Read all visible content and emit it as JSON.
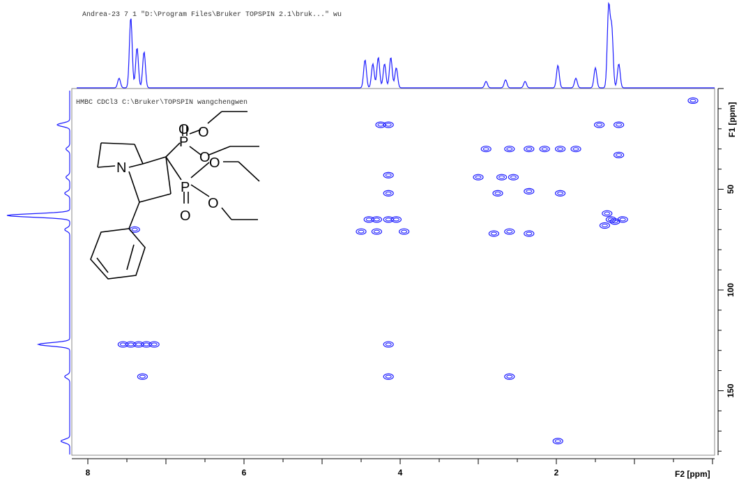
{
  "header_line": "Andrea-23  7  1  \"D:\\Program Files\\Bruker TOPSPIN 2.1\\bruk...\"  wu",
  "plot_title": "HMBC CDCl3 C:\\Bruker\\TOPSPIN wangchengwen",
  "colors": {
    "contour": "#1a1aff",
    "axis": "#000000",
    "frame": "#888888"
  },
  "chart_data": {
    "type": "heatmap",
    "title": "HMBC CDCl3 C:\\Bruker\\TOPSPIN wangchengwen",
    "xlabel": "F2 [ppm]",
    "ylabel": "F1 [ppm]",
    "xlim": [
      8.2,
      0.0
    ],
    "ylim": [
      0,
      182
    ],
    "x_ticks": [
      8,
      6,
      4,
      2
    ],
    "y_ticks": [
      50,
      100,
      150
    ],
    "grid": false,
    "cross_peaks": [
      {
        "x": 7.4,
        "y": 70
      },
      {
        "x": 7.55,
        "y": 127
      },
      {
        "x": 7.45,
        "y": 127
      },
      {
        "x": 7.35,
        "y": 127
      },
      {
        "x": 7.25,
        "y": 127
      },
      {
        "x": 7.15,
        "y": 127
      },
      {
        "x": 7.3,
        "y": 143
      },
      {
        "x": 4.25,
        "y": 18
      },
      {
        "x": 4.15,
        "y": 18
      },
      {
        "x": 4.15,
        "y": 43
      },
      {
        "x": 4.15,
        "y": 52
      },
      {
        "x": 4.4,
        "y": 65
      },
      {
        "x": 4.3,
        "y": 65
      },
      {
        "x": 4.15,
        "y": 65
      },
      {
        "x": 4.05,
        "y": 65
      },
      {
        "x": 4.5,
        "y": 71
      },
      {
        "x": 4.3,
        "y": 71
      },
      {
        "x": 3.95,
        "y": 71
      },
      {
        "x": 4.15,
        "y": 127
      },
      {
        "x": 4.15,
        "y": 143
      },
      {
        "x": 2.9,
        "y": 30
      },
      {
        "x": 2.6,
        "y": 30
      },
      {
        "x": 2.35,
        "y": 30
      },
      {
        "x": 2.15,
        "y": 30
      },
      {
        "x": 1.95,
        "y": 30
      },
      {
        "x": 1.75,
        "y": 30
      },
      {
        "x": 3.0,
        "y": 44
      },
      {
        "x": 2.7,
        "y": 44
      },
      {
        "x": 2.55,
        "y": 44
      },
      {
        "x": 2.75,
        "y": 52
      },
      {
        "x": 2.35,
        "y": 51
      },
      {
        "x": 1.95,
        "y": 52
      },
      {
        "x": 2.8,
        "y": 72
      },
      {
        "x": 2.6,
        "y": 71
      },
      {
        "x": 2.35,
        "y": 72
      },
      {
        "x": 2.6,
        "y": 143
      },
      {
        "x": 1.98,
        "y": 175
      },
      {
        "x": 1.45,
        "y": 18
      },
      {
        "x": 1.2,
        "y": 18
      },
      {
        "x": 1.35,
        "y": 62
      },
      {
        "x": 1.3,
        "y": 65
      },
      {
        "x": 1.25,
        "y": 66
      },
      {
        "x": 1.15,
        "y": 65
      },
      {
        "x": 1.38,
        "y": 68
      },
      {
        "x": 1.2,
        "y": 33
      },
      {
        "x": 0.25,
        "y": 6
      }
    ],
    "projection_f2_peaks": [
      {
        "ppm": 7.6,
        "intensity": 0.12
      },
      {
        "ppm": 7.45,
        "intensity": 0.88
      },
      {
        "ppm": 7.37,
        "intensity": 0.5
      },
      {
        "ppm": 7.28,
        "intensity": 0.45
      },
      {
        "ppm": 4.45,
        "intensity": 0.35
      },
      {
        "ppm": 4.35,
        "intensity": 0.3
      },
      {
        "ppm": 4.28,
        "intensity": 0.38
      },
      {
        "ppm": 4.2,
        "intensity": 0.3
      },
      {
        "ppm": 4.12,
        "intensity": 0.38
      },
      {
        "ppm": 4.05,
        "intensity": 0.25
      },
      {
        "ppm": 2.9,
        "intensity": 0.08
      },
      {
        "ppm": 2.65,
        "intensity": 0.1
      },
      {
        "ppm": 2.4,
        "intensity": 0.08
      },
      {
        "ppm": 1.98,
        "intensity": 0.28
      },
      {
        "ppm": 1.75,
        "intensity": 0.12
      },
      {
        "ppm": 1.5,
        "intensity": 0.25
      },
      {
        "ppm": 1.33,
        "intensity": 1.0
      },
      {
        "ppm": 1.29,
        "intensity": 0.72
      },
      {
        "ppm": 1.2,
        "intensity": 0.3
      }
    ],
    "projection_f1_peaks": [
      {
        "ppm": 18,
        "intensity": 0.2
      },
      {
        "ppm": 30,
        "intensity": 0.06
      },
      {
        "ppm": 44,
        "intensity": 0.06
      },
      {
        "ppm": 52,
        "intensity": 0.08
      },
      {
        "ppm": 63,
        "intensity": 1.0
      },
      {
        "ppm": 70,
        "intensity": 0.08
      },
      {
        "ppm": 127,
        "intensity": 0.5
      },
      {
        "ppm": 143,
        "intensity": 0.08
      },
      {
        "ppm": 175,
        "intensity": 0.14
      }
    ]
  },
  "structure": {
    "atom_labels": [
      "N",
      "P",
      "P",
      "O",
      "O",
      "O",
      "O",
      "O",
      "O"
    ]
  }
}
